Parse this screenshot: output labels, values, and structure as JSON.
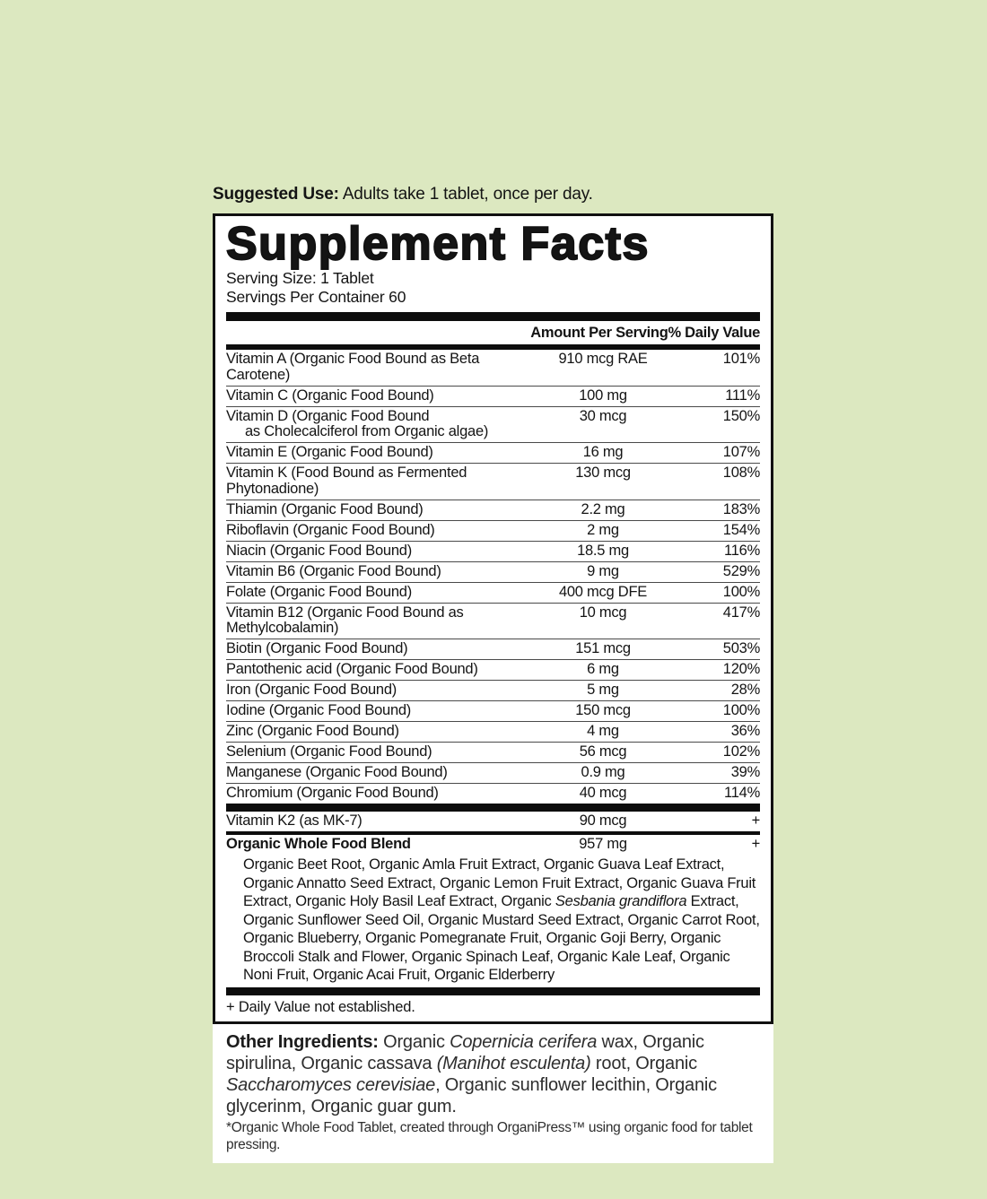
{
  "page": {
    "background_color": "#dce8c0",
    "label_background": "#ffffff",
    "border_color": "#111111"
  },
  "suggested_use": {
    "label": "Suggested Use:",
    "text": " Adults take 1 tablet, once per day."
  },
  "panel": {
    "title": "Supplement Facts",
    "serving_size": "Serving Size: 1 Tablet",
    "servings_per_container": "Servings Per Container 60",
    "col_amount": "Amount Per Serving",
    "col_dv": "% Daily Value",
    "nutrients": [
      {
        "name": "Vitamin A (Organic Food Bound as Beta Carotene)",
        "amount": "910 mcg RAE",
        "dv": "101%"
      },
      {
        "name": "Vitamin C (Organic Food Bound)",
        "amount": "100 mg",
        "dv": "111%"
      },
      {
        "name": "Vitamin D (Organic Food Bound",
        "name2": "as Cholecalciferol from Organic algae)",
        "amount": "30 mcg",
        "dv": "150%"
      },
      {
        "name": "Vitamin E (Organic Food Bound)",
        "amount": "16 mg",
        "dv": "107%"
      },
      {
        "name": "Vitamin K (Food Bound as Fermented Phytonadione)",
        "amount": "130 mcg",
        "dv": "108%"
      },
      {
        "name": "Thiamin (Organic Food Bound)",
        "amount": "2.2 mg",
        "dv": "183%"
      },
      {
        "name": "Riboflavin (Organic Food Bound)",
        "amount": "2 mg",
        "dv": "154%"
      },
      {
        "name": "Niacin (Organic Food Bound)",
        "amount": "18.5 mg",
        "dv": "116%"
      },
      {
        "name": "Vitamin B6 (Organic Food Bound)",
        "amount": "9 mg",
        "dv": "529%"
      },
      {
        "name": "Folate (Organic Food Bound)",
        "amount": "400 mcg DFE",
        "dv": "100%"
      },
      {
        "name": "Vitamin B12 (Organic Food Bound as Methylcobalamin)",
        "amount": "10 mcg",
        "dv": "417%"
      },
      {
        "name": "Biotin (Organic Food Bound)",
        "amount": "151 mcg",
        "dv": "503%"
      },
      {
        "name": "Pantothenic acid (Organic Food Bound)",
        "amount": "6 mg",
        "dv": "120%"
      },
      {
        "name": "Iron (Organic Food Bound)",
        "amount": "5 mg",
        "dv": "28%"
      },
      {
        "name": "Iodine (Organic Food Bound)",
        "amount": "150 mcg",
        "dv": "100%"
      },
      {
        "name": "Zinc (Organic Food Bound)",
        "amount": "4 mg",
        "dv": "36%"
      },
      {
        "name": "Selenium (Organic Food Bound)",
        "amount": "56 mcg",
        "dv": "102%"
      },
      {
        "name": "Manganese (Organic Food Bound)",
        "amount": "0.9 mg",
        "dv": "39%"
      },
      {
        "name": "Chromium (Organic Food Bound)",
        "amount": "40 mcg",
        "dv": "114%"
      }
    ],
    "k2_row": {
      "name": "Vitamin K2 (as MK-7)",
      "amount": "90 mcg",
      "dv": "+"
    },
    "blend": {
      "name": "Organic Whole Food Blend",
      "amount": "957 mg",
      "dv": "+",
      "ingredients": [
        {
          "text": "Organic Beet Root, Organic Amla Fruit Extract, Organic Guava Leaf Extract, Organic Annatto Seed Extract, Organic Lemon Fruit Extract, Organic Guava Fruit Extract, Organic Holy Basil Leaf Extract, Organic ",
          "italic": false
        },
        {
          "text": "Sesbania grandiflora",
          "italic": true
        },
        {
          "text": " Extract, Organic Sunflower Seed Oil, Organic Mustard Seed Extract, Organic Carrot Root, Organic Blueberry, Organic Pomegranate Fruit, Organic Goji Berry, Organic Broccoli Stalk and Flower, Organic Spinach Leaf, Organic Kale Leaf, Organic Noni Fruit, Organic Acai Fruit, Organic Elderberry",
          "italic": false
        }
      ]
    },
    "daily_value_note": "+ Daily Value not established."
  },
  "other_ingredients": {
    "label": "Other Ingredients: ",
    "segments": [
      {
        "text": "Organic ",
        "italic": false
      },
      {
        "text": "Copernicia cerifera",
        "italic": true
      },
      {
        "text": " wax, Organic spirulina, Organic cassava ",
        "italic": false
      },
      {
        "text": "(Manihot esculenta)",
        "italic": true
      },
      {
        "text": " root, Organic ",
        "italic": false
      },
      {
        "text": "Saccharomyces cerevisiae",
        "italic": true
      },
      {
        "text": ", Organic sunflower lecithin, Organic glycerinm, Organic guar gum.",
        "italic": false
      }
    ]
  },
  "press_note": "*Organic Whole Food Tablet, created through OrganiPress™ using organic food for tablet pressing."
}
